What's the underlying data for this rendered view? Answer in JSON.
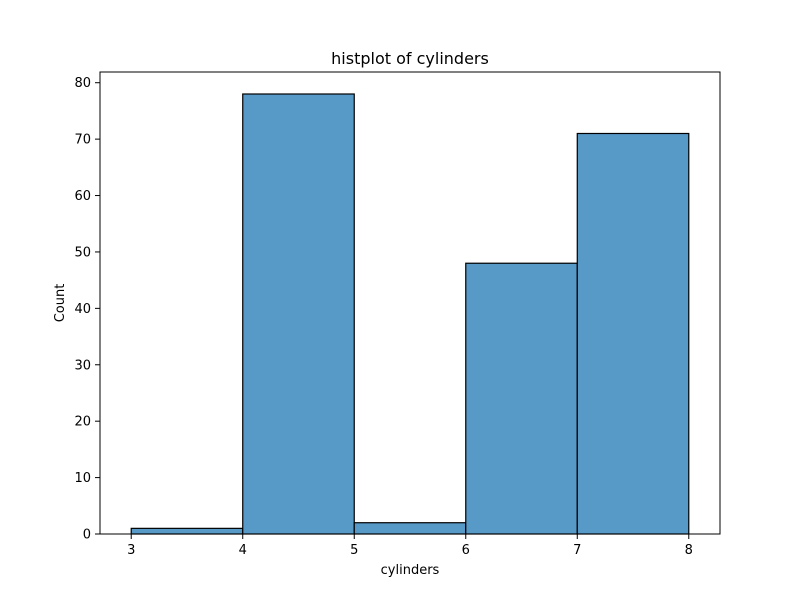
{
  "chart_data": {
    "type": "bar",
    "title": "histplot of cylinders",
    "xlabel": "cylinders",
    "ylabel": "Count",
    "bins": [
      {
        "start": 3,
        "end": 4,
        "count": 1
      },
      {
        "start": 4,
        "end": 5,
        "count": 78
      },
      {
        "start": 5,
        "end": 6,
        "count": 2
      },
      {
        "start": 6,
        "end": 7,
        "count": 48
      },
      {
        "start": 7,
        "end": 8,
        "count": 71
      }
    ],
    "xlim": [
      2.72,
      8.28
    ],
    "ylim": [
      0,
      81.9
    ],
    "xticks": [
      3,
      4,
      5,
      6,
      7,
      8
    ],
    "yticks": [
      0,
      10,
      20,
      30,
      40,
      50,
      60,
      70,
      80
    ],
    "grid": false,
    "colors": {
      "bar_fill": "#5799c7",
      "bar_edge": "#000000"
    }
  }
}
